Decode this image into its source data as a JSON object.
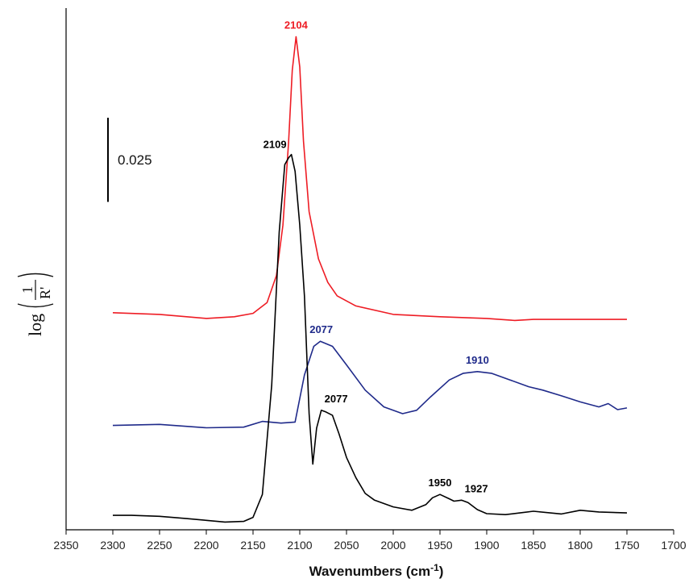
{
  "chart_data": {
    "type": "line",
    "xlabel": "Wavenumbers (cm",
    "xlabel_sup": "-1",
    "xlabel_end": ")",
    "ylabel": {
      "prefix": "log",
      "numerator": "1",
      "denominator": "R'"
    },
    "xlim": [
      2350,
      1700
    ],
    "x_reversed": true,
    "x_ticks": [
      "2350",
      "2300",
      "2250",
      "2200",
      "2150",
      "2100",
      "2050",
      "2000",
      "1950",
      "1900",
      "1850",
      "1800",
      "1750",
      "1700"
    ],
    "ylim": [
      0,
      0.155
    ],
    "y_ticks": "none",
    "grid": false,
    "scale_bar": {
      "label": "0.025",
      "value": 0.025
    },
    "series": [
      {
        "color": "#ee1c24",
        "x": [
          2300,
          2250,
          2200,
          2170,
          2150,
          2135,
          2125,
          2118,
          2112,
          2108,
          2104,
          2100,
          2096,
          2090,
          2080,
          2070,
          2060,
          2040,
          2000,
          1950,
          1900,
          1870,
          1850,
          1800,
          1750
        ],
        "y": [
          0.0645,
          0.064,
          0.0628,
          0.0633,
          0.0643,
          0.0675,
          0.0755,
          0.0905,
          0.115,
          0.1365,
          0.1465,
          0.1375,
          0.1155,
          0.0945,
          0.0805,
          0.0735,
          0.0695,
          0.0665,
          0.064,
          0.0633,
          0.0628,
          0.0622,
          0.0625,
          0.0625,
          0.0625
        ]
      },
      {
        "color": "#1f2a8a",
        "x": [
          2300,
          2250,
          2200,
          2160,
          2140,
          2120,
          2105,
          2095,
          2085,
          2078,
          2065,
          2050,
          2030,
          2010,
          1990,
          1975,
          1960,
          1940,
          1925,
          1910,
          1895,
          1875,
          1855,
          1840,
          1820,
          1800,
          1780,
          1770,
          1760,
          1750
        ],
        "y": [
          0.031,
          0.0313,
          0.0303,
          0.0305,
          0.0322,
          0.0317,
          0.032,
          0.046,
          0.0545,
          0.056,
          0.0545,
          0.049,
          0.0415,
          0.0365,
          0.0345,
          0.0355,
          0.0395,
          0.0445,
          0.0465,
          0.047,
          0.0465,
          0.0445,
          0.0425,
          0.0415,
          0.0398,
          0.038,
          0.0365,
          0.0375,
          0.0357,
          0.0362
        ]
      },
      {
        "color": "#000000",
        "x": [
          2300,
          2280,
          2250,
          2220,
          2200,
          2180,
          2160,
          2150,
          2140,
          2130,
          2122,
          2116,
          2112,
          2109,
          2105,
          2100,
          2095,
          2090,
          2086,
          2082,
          2077,
          2072,
          2065,
          2058,
          2050,
          2040,
          2030,
          2020,
          2000,
          1980,
          1965,
          1958,
          1950,
          1940,
          1935,
          1927,
          1920,
          1910,
          1900,
          1880,
          1850,
          1820,
          1800,
          1780,
          1750
        ],
        "y": [
          0.0043,
          0.0043,
          0.004,
          0.0033,
          0.0028,
          0.0023,
          0.0025,
          0.0037,
          0.0105,
          0.043,
          0.0885,
          0.1085,
          0.1105,
          0.1115,
          0.1065,
          0.0905,
          0.0695,
          0.0345,
          0.0195,
          0.0302,
          0.0355,
          0.035,
          0.034,
          0.0285,
          0.0215,
          0.0155,
          0.0108,
          0.0088,
          0.0068,
          0.0058,
          0.0075,
          0.0095,
          0.0105,
          0.0092,
          0.0085,
          0.0088,
          0.0081,
          0.006,
          0.0048,
          0.0045,
          0.0055,
          0.0047,
          0.0058,
          0.0053,
          0.005
        ]
      }
    ],
    "annotations": [
      {
        "text": "2104",
        "x": 2104,
        "y": 0.1465,
        "color": "#ee1c24"
      },
      {
        "text": "2109",
        "x": 2109,
        "y": 0.1115,
        "color": "#000000",
        "side": "left"
      },
      {
        "text": "2077",
        "x": 2077,
        "y": 0.056,
        "color": "#1f2a8a"
      },
      {
        "text": "1910",
        "x": 1910,
        "y": 0.047,
        "color": "#1f2a8a"
      },
      {
        "text": "2077",
        "x": 2077,
        "y": 0.0355,
        "color": "#000000",
        "side": "right"
      },
      {
        "text": "1950",
        "x": 1950,
        "y": 0.0105,
        "color": "#000000"
      },
      {
        "text": "1927",
        "x": 1927,
        "y": 0.0088,
        "color": "#000000",
        "side": "right"
      }
    ]
  }
}
